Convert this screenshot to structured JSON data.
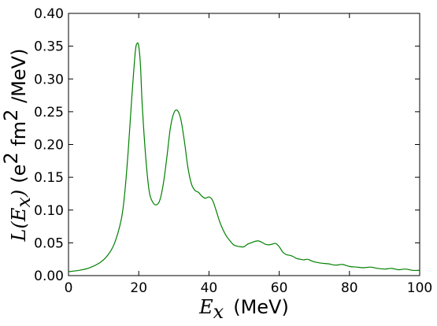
{
  "chart_data": {
    "type": "line",
    "xlabel": {
      "math": "E",
      "sub": "x",
      "text": "(MeV)"
    },
    "ylabel": {
      "math_pre": "L(E",
      "sub": "x",
      "math_post": ")",
      "text_pre": "(e",
      "sup1": "2",
      "text_mid": " fm",
      "sup2": "2",
      "text_post": " /MeV)"
    },
    "xlim": [
      0,
      100
    ],
    "ylim": [
      0,
      0.4
    ],
    "x_ticks": [
      "0",
      "20",
      "40",
      "60",
      "80",
      "100"
    ],
    "y_ticks": [
      "0.00",
      "0.05",
      "0.10",
      "0.15",
      "0.20",
      "0.25",
      "0.30",
      "0.35",
      "0.40"
    ],
    "grid": false,
    "series": [
      {
        "color": "#008000",
        "x": [
          0,
          3,
          6,
          9,
          11,
          13,
          15,
          16,
          17,
          18,
          19,
          19.5,
          20,
          20.5,
          21,
          22,
          23,
          24,
          25,
          26,
          27,
          28,
          29,
          30,
          31,
          32,
          33,
          34,
          35,
          36,
          37,
          38,
          39,
          40,
          41,
          42,
          43,
          44,
          45,
          46,
          47,
          48,
          49,
          50,
          51,
          52,
          53,
          54,
          55,
          56,
          57,
          58,
          59,
          60,
          61,
          62,
          63,
          64,
          65,
          66,
          67,
          68,
          69,
          70,
          72,
          74,
          76,
          78,
          80,
          82,
          84,
          86,
          88,
          90,
          92,
          94,
          96,
          98,
          100
        ],
        "y": [
          0.006,
          0.008,
          0.012,
          0.02,
          0.03,
          0.048,
          0.085,
          0.125,
          0.19,
          0.27,
          0.34,
          0.354,
          0.35,
          0.32,
          0.26,
          0.18,
          0.128,
          0.112,
          0.108,
          0.115,
          0.14,
          0.18,
          0.225,
          0.248,
          0.252,
          0.238,
          0.205,
          0.165,
          0.14,
          0.13,
          0.127,
          0.121,
          0.118,
          0.12,
          0.115,
          0.1,
          0.083,
          0.07,
          0.06,
          0.053,
          0.047,
          0.045,
          0.044,
          0.044,
          0.048,
          0.05,
          0.052,
          0.053,
          0.051,
          0.048,
          0.047,
          0.048,
          0.049,
          0.044,
          0.036,
          0.032,
          0.031,
          0.029,
          0.026,
          0.025,
          0.024,
          0.025,
          0.023,
          0.021,
          0.019,
          0.018,
          0.016,
          0.017,
          0.014,
          0.013,
          0.012,
          0.013,
          0.011,
          0.01,
          0.011,
          0.009,
          0.01,
          0.008,
          0.008
        ]
      }
    ]
  }
}
